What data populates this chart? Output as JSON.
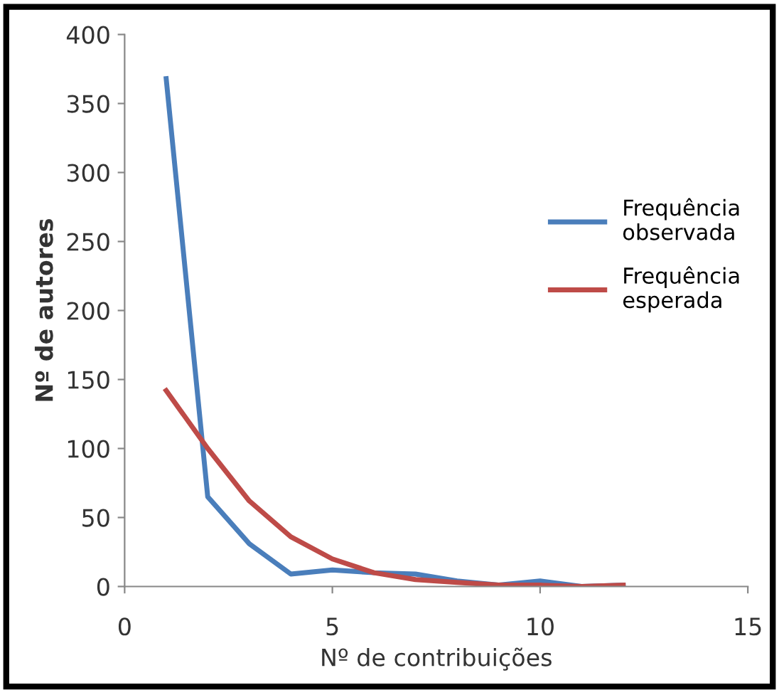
{
  "chart_data": {
    "type": "line",
    "xlabel": "Nº de contribuições",
    "ylabel": "Nº de autores",
    "x": [
      1,
      2,
      3,
      4,
      5,
      6,
      7,
      8,
      9,
      10,
      11,
      12
    ],
    "series": [
      {
        "name": "Frequência\nobservada",
        "color": "#4a7ebb",
        "values": [
          368,
          65,
          31,
          9,
          12,
          10,
          9,
          4,
          1,
          4,
          0,
          1
        ]
      },
      {
        "name": "Frequência\nesperada",
        "color": "#be4b48",
        "values": [
          142,
          100,
          62,
          36,
          20,
          10,
          5,
          3,
          1,
          1,
          0,
          1
        ]
      }
    ],
    "xlim": [
      0,
      15
    ],
    "xticks": [
      0,
      5,
      10,
      15
    ],
    "ylim": [
      0,
      400
    ],
    "yticks": [
      0,
      50,
      100,
      150,
      200,
      250,
      300,
      350,
      400
    ],
    "grid": false,
    "legend": "right",
    "marker": "none",
    "line_style": "solid"
  }
}
